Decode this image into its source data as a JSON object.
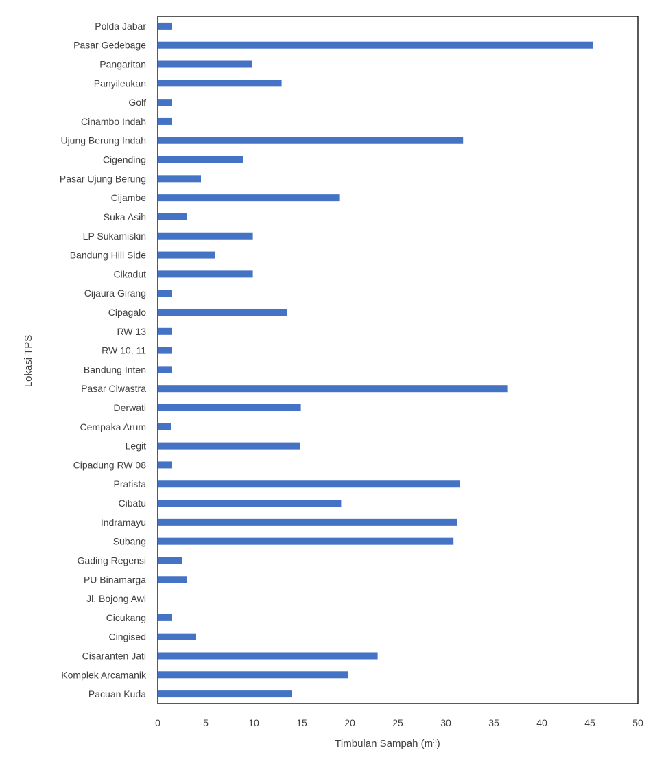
{
  "chart_data": {
    "type": "bar",
    "orientation": "horizontal",
    "title": "",
    "xlabel": "Timbulan Sampah (m",
    "xlabel_superscript": "3",
    "xlabel_suffix": ")",
    "ylabel": "Lokasi TPS",
    "xlim": [
      0,
      50
    ],
    "xticks": [
      0,
      5,
      10,
      15,
      20,
      25,
      30,
      35,
      40,
      45,
      50
    ],
    "grid": false,
    "bar_color": "#4472C4",
    "categories": [
      "Polda Jabar",
      "Pasar Gedebage",
      "Pangaritan",
      "Panyileukan",
      "Golf",
      "Cinambo Indah",
      "Ujung Berung Indah",
      "Cigending",
      "Pasar Ujung Berung",
      "Cijambe",
      "Suka Asih",
      "LP Sukamiskin",
      "Bandung Hill Side",
      "Cikadut",
      "Cijaura Girang",
      "Cipagalo",
      "RW 13",
      "RW 10, 11",
      "Bandung Inten",
      "Pasar Ciwastra",
      "Derwati",
      "Cempaka Arum",
      "Legit",
      "Cipadung RW 08",
      "Pratista",
      "Cibatu",
      "Indramayu",
      "Subang",
      "Gading Regensi",
      "PU Binamarga",
      "Jl. Bojong Awi",
      "Cicukang",
      "Cingised",
      "Cisaranten Jati",
      "Komplek Arcamanik",
      "Pacuan Kuda"
    ],
    "values": [
      1.5,
      45.3,
      9.8,
      12.9,
      1.5,
      1.5,
      31.8,
      8.9,
      4.5,
      18.9,
      3.0,
      9.9,
      6.0,
      9.9,
      1.5,
      13.5,
      1.5,
      1.5,
      1.5,
      36.4,
      14.9,
      1.4,
      14.8,
      1.5,
      31.5,
      19.1,
      31.2,
      30.8,
      2.5,
      3.0,
      0,
      1.5,
      4.0,
      22.9,
      19.8,
      14.0
    ]
  }
}
